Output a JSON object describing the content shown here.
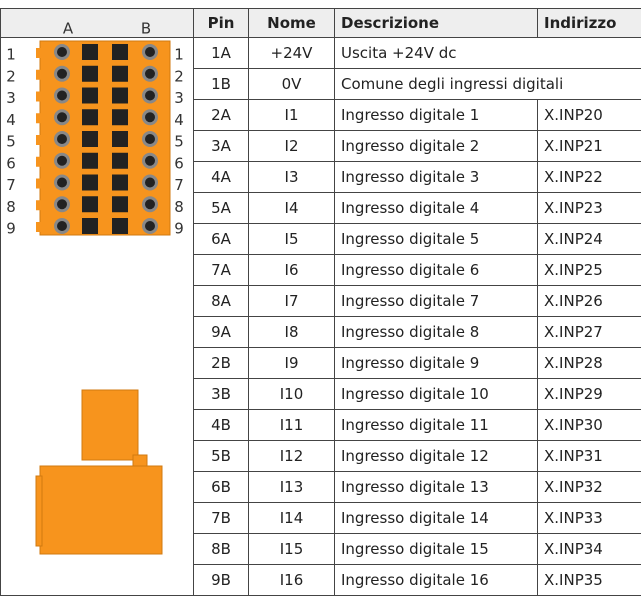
{
  "connector": {
    "column_labels": [
      "A",
      "B"
    ],
    "row_labels": [
      "1",
      "2",
      "3",
      "4",
      "5",
      "6",
      "7",
      "8",
      "9"
    ]
  },
  "table": {
    "header": [
      "Pin",
      "Nome",
      "Descrizione",
      "Indirizzo"
    ],
    "rows": [
      [
        "1A",
        "+24V",
        "Uscita +24V dc"
      ],
      [
        "1B",
        "0V",
        "Comune degli ingressi digitali"
      ],
      [
        "2A",
        "I1",
        "Ingresso digitale 1",
        "X.INP20"
      ],
      [
        "3A",
        "I2",
        "Ingresso digitale 2",
        "X.INP21"
      ],
      [
        "4A",
        "I3",
        "Ingresso digitale 3",
        "X.INP22"
      ],
      [
        "5A",
        "I4",
        "Ingresso digitale 4",
        "X.INP23"
      ],
      [
        "6A",
        "I5",
        "Ingresso digitale 5",
        "X.INP24"
      ],
      [
        "7A",
        "I6",
        "Ingresso digitale 6",
        "X.INP25"
      ],
      [
        "8A",
        "I7",
        "Ingresso digitale 7",
        "X.INP26"
      ],
      [
        "9A",
        "I8",
        "Ingresso digitale 8",
        "X.INP27"
      ],
      [
        "2B",
        "I9",
        "Ingresso digitale 9",
        "X.INP28"
      ],
      [
        "3B",
        "I10",
        "Ingresso digitale 10",
        "X.INP29"
      ],
      [
        "4B",
        "I11",
        "Ingresso digitale 11",
        "X.INP30"
      ],
      [
        "5B",
        "I12",
        "Ingresso digitale 12",
        "X.INP31"
      ],
      [
        "6B",
        "I13",
        "Ingresso digitale 13",
        "X.INP32"
      ],
      [
        "7B",
        "I14",
        "Ingresso digitale 14",
        "X.INP33"
      ],
      [
        "8B",
        "I15",
        "Ingresso digitale 15",
        "X.INP34"
      ],
      [
        "9B",
        "I16",
        "Ingresso digitale 16",
        "X.INP35"
      ]
    ]
  }
}
